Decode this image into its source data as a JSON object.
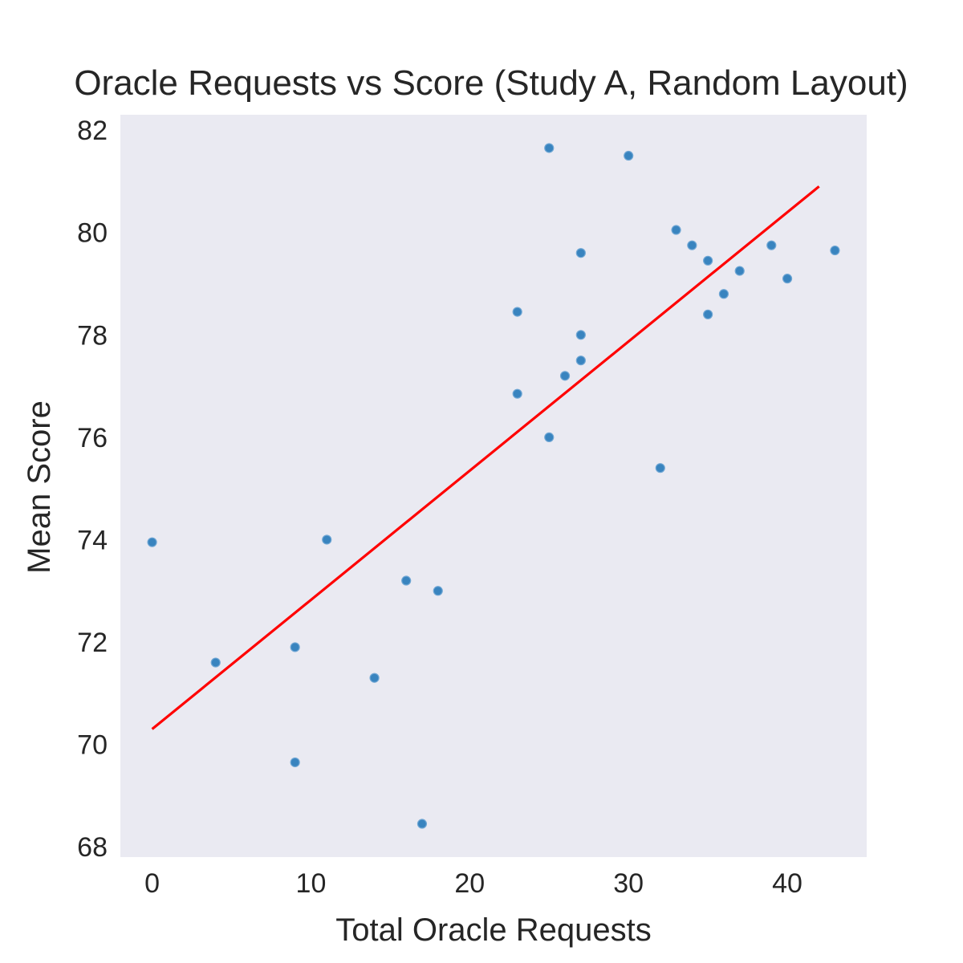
{
  "chart_data": {
    "type": "scatter",
    "title": "Oracle Requests vs Score (Study A, Random Layout)",
    "xlabel": "Total Oracle Requests",
    "ylabel": "Mean Score",
    "xlim": [
      -2,
      45
    ],
    "ylim": [
      67.8,
      82.3
    ],
    "x_ticks": [
      0,
      10,
      20,
      30,
      40
    ],
    "y_ticks": [
      68,
      70,
      72,
      74,
      76,
      78,
      80,
      82
    ],
    "grid": false,
    "background_color": "#eaeaf2",
    "point_color": "#2f7ebc",
    "fit_color": "#ff0000",
    "points": [
      {
        "x": 0,
        "y": 73.95
      },
      {
        "x": 4,
        "y": 71.6
      },
      {
        "x": 9,
        "y": 71.9
      },
      {
        "x": 9,
        "y": 69.65
      },
      {
        "x": 11,
        "y": 74.0
      },
      {
        "x": 14,
        "y": 71.3
      },
      {
        "x": 16,
        "y": 73.2
      },
      {
        "x": 17,
        "y": 68.45
      },
      {
        "x": 18,
        "y": 73.0
      },
      {
        "x": 23,
        "y": 78.45
      },
      {
        "x": 23,
        "y": 76.85
      },
      {
        "x": 25,
        "y": 81.65
      },
      {
        "x": 25,
        "y": 76.0
      },
      {
        "x": 26,
        "y": 77.2
      },
      {
        "x": 27,
        "y": 79.6
      },
      {
        "x": 27,
        "y": 78.0
      },
      {
        "x": 27,
        "y": 77.5
      },
      {
        "x": 30,
        "y": 81.5
      },
      {
        "x": 32,
        "y": 75.4
      },
      {
        "x": 33,
        "y": 80.05
      },
      {
        "x": 34,
        "y": 79.75
      },
      {
        "x": 35,
        "y": 79.45
      },
      {
        "x": 35,
        "y": 78.4
      },
      {
        "x": 36,
        "y": 78.8
      },
      {
        "x": 37,
        "y": 79.25
      },
      {
        "x": 39,
        "y": 79.75
      },
      {
        "x": 40,
        "y": 79.1
      },
      {
        "x": 43,
        "y": 79.65
      }
    ],
    "fit_line": {
      "x": [
        0,
        42
      ],
      "y": [
        70.3,
        80.9
      ]
    }
  }
}
